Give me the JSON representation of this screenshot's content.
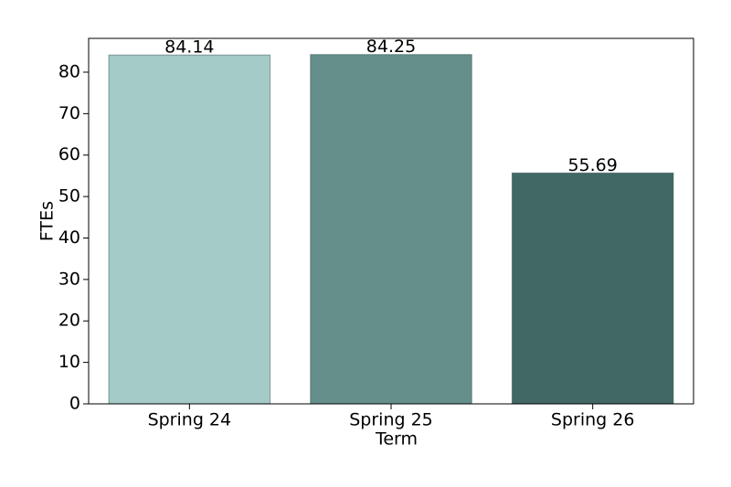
{
  "chart_data": {
    "type": "bar",
    "x_label": "Term",
    "y_label": "FTEs",
    "categories": [
      "Spring 24",
      "Spring 25",
      "Spring 26"
    ],
    "values": [
      84.14,
      84.25,
      55.69
    ],
    "colors": [
      "#a5cbc8",
      "#648f8b",
      "#416864"
    ],
    "ylim": [
      0,
      88.15
    ],
    "yticks": [
      0,
      10,
      20,
      30,
      40,
      50,
      60,
      70,
      80
    ],
    "grid": false
  }
}
